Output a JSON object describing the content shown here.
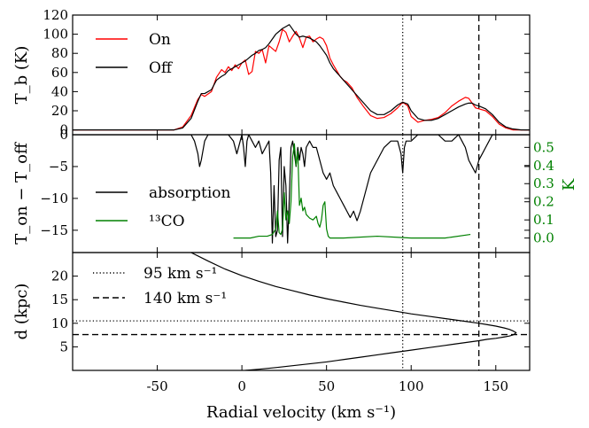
{
  "chart_data": {
    "type": "line",
    "x_axis": {
      "label": "Radial velocity (km s⁻¹)",
      "range": [
        -100,
        170
      ],
      "ticks": [
        -50,
        0,
        50,
        100,
        150
      ],
      "tick_labels": [
        "-50",
        "0",
        "50",
        "100",
        "150"
      ]
    },
    "marker_lines": [
      {
        "x": 95,
        "style": "dotted"
      },
      {
        "x": 140,
        "style": "dashed"
      }
    ],
    "panels": [
      {
        "id": "top",
        "ylabel": "T_b (K)",
        "ylim": [
          -5,
          120
        ],
        "yticks": [
          0,
          20,
          40,
          60,
          80,
          100,
          120
        ],
        "ytick_labels": [
          "0",
          "20",
          "40",
          "60",
          "80",
          "100",
          "120"
        ],
        "legend": [
          {
            "label": "On",
            "color": "#ff0000"
          },
          {
            "label": "Off",
            "color": "#000000"
          }
        ],
        "series": [
          {
            "name": "On",
            "color": "#ff0000",
            "x": [
              -100,
              -40,
              -35,
              -30,
              -26,
              -24,
              -22,
              -18,
              -15,
              -12,
              -10,
              -8,
              -6,
              -4,
              -2,
              0,
              2,
              4,
              6,
              8,
              10,
              12,
              14,
              16,
              18,
              20,
              22,
              24,
              26,
              28,
              30,
              32,
              34,
              36,
              38,
              40,
              42,
              44,
              46,
              48,
              50,
              52,
              54,
              56,
              58,
              60,
              62,
              65,
              68,
              72,
              76,
              80,
              84,
              88,
              92,
              95,
              98,
              100,
              104,
              108,
              112,
              116,
              120,
              124,
              128,
              132,
              134,
              136,
              138,
              140,
              144,
              148,
              152,
              156,
              160,
              165,
              170
            ],
            "y": [
              0,
              0,
              3,
              15,
              32,
              37,
              35,
              40,
              55,
              63,
              60,
              66,
              62,
              68,
              64,
              70,
              73,
              58,
              61,
              82,
              80,
              84,
              70,
              88,
              85,
              82,
              92,
              105,
              102,
              92,
              98,
              103,
              96,
              86,
              97,
              98,
              92,
              95,
              97,
              95,
              88,
              75,
              68,
              62,
              56,
              52,
              50,
              44,
              34,
              24,
              15,
              12,
              13,
              17,
              23,
              29,
              25,
              14,
              8,
              10,
              11,
              13,
              18,
              25,
              30,
              34,
              33,
              28,
              23,
              22,
              20,
              14,
              6,
              2,
              0,
              0,
              0
            ]
          },
          {
            "name": "Off",
            "color": "#000000",
            "x": [
              -100,
              -40,
              -35,
              -30,
              -26,
              -24,
              -22,
              -18,
              -15,
              -12,
              -10,
              -8,
              -6,
              -4,
              -2,
              0,
              2,
              4,
              6,
              8,
              10,
              12,
              14,
              16,
              18,
              20,
              22,
              24,
              26,
              28,
              30,
              32,
              34,
              36,
              38,
              40,
              42,
              44,
              46,
              48,
              50,
              52,
              54,
              56,
              58,
              60,
              62,
              65,
              68,
              72,
              76,
              80,
              84,
              88,
              92,
              95,
              98,
              100,
              104,
              108,
              112,
              116,
              120,
              124,
              128,
              132,
              134,
              136,
              138,
              140,
              144,
              148,
              152,
              156,
              160,
              165,
              170
            ],
            "y": [
              0,
              0,
              2,
              12,
              30,
              38,
              38,
              42,
              52,
              56,
              58,
              62,
              64,
              66,
              68,
              70,
              72,
              75,
              78,
              80,
              83,
              84,
              86,
              90,
              95,
              100,
              103,
              106,
              108,
              110,
              105,
              100,
              97,
              98,
              97,
              96,
              94,
              92,
              88,
              83,
              78,
              70,
              64,
              60,
              56,
              52,
              48,
              42,
              36,
              28,
              20,
              16,
              16,
              20,
              26,
              29,
              27,
              20,
              12,
              10,
              10,
              12,
              16,
              20,
              24,
              27,
              28,
              28,
              26,
              25,
              22,
              16,
              8,
              3,
              1,
              0,
              0
            ]
          }
        ]
      },
      {
        "id": "middle",
        "ylabel": "T_on − T_off",
        "ylim": [
          -18.5,
          0
        ],
        "yticks": [
          0,
          -5,
          -10,
          -15
        ],
        "ytick_labels": [
          "0",
          "−5",
          "−10",
          "−15"
        ],
        "right_axis": {
          "label": "K",
          "color": "#008000",
          "ylim": [
            -0.08,
            0.57
          ],
          "yticks": [
            0.0,
            0.1,
            0.2,
            0.3,
            0.4,
            0.5
          ],
          "ytick_labels": [
            "0.0",
            "0.1",
            "0.2",
            "0.3",
            "0.4",
            "0.5"
          ]
        },
        "legend": [
          {
            "label": "absorption",
            "color": "#000000"
          },
          {
            "label": "¹³CO",
            "color": "#008000"
          }
        ],
        "series": [
          {
            "name": "absorption",
            "color": "#000000",
            "x": [
              -100,
              -35,
              -30,
              -28,
              -26,
              -25,
              -24,
              -22,
              -20,
              -15,
              -12,
              -8,
              -5,
              -3,
              -1,
              0,
              1,
              2,
              3,
              4,
              6,
              8,
              10,
              12,
              14,
              16,
              17,
              18,
              19,
              20,
              21,
              22,
              23,
              24,
              25,
              26,
              27,
              28,
              29,
              30,
              31,
              32,
              33,
              34,
              35,
              36,
              37,
              38,
              40,
              42,
              44,
              46,
              48,
              50,
              52,
              54,
              56,
              58,
              60,
              62,
              64,
              66,
              68,
              70,
              72,
              74,
              76,
              80,
              84,
              88,
              92,
              94,
              95,
              96,
              97,
              98,
              100,
              104,
              108,
              112,
              116,
              120,
              124,
              128,
              130,
              132,
              134,
              136,
              138,
              140,
              142,
              144,
              146,
              148,
              150,
              155,
              170
            ],
            "y": [
              0,
              0,
              0,
              -1,
              -3,
              -5,
              -4,
              -1,
              0,
              0,
              0,
              0,
              -1,
              -3,
              -1,
              0,
              -2,
              -5,
              -1,
              0,
              -1,
              -2,
              -1,
              -3,
              -2,
              -1,
              -6,
              -17,
              -8,
              -16,
              -15,
              -4,
              -2,
              -16,
              -5,
              -8,
              -17,
              -10,
              -2,
              -1,
              -3,
              -5,
              -2,
              -4,
              -2,
              -3,
              -5,
              -2,
              -1,
              -2,
              -2,
              -4,
              -6,
              -7,
              -6,
              -8,
              -9,
              -10,
              -11,
              -12,
              -13,
              -12,
              -13.5,
              -12,
              -10,
              -8,
              -6,
              -4,
              -2,
              -1,
              -1,
              -3,
              -6,
              -2,
              -1,
              -1,
              -1,
              0,
              0,
              0,
              0,
              -1,
              -1,
              0,
              -1,
              -2,
              -4,
              -5,
              -6,
              -4,
              -3,
              -2,
              -1,
              0,
              0,
              0,
              0
            ]
          },
          {
            "name": "¹³CO",
            "color": "#008000",
            "x": [
              -5,
              5,
              10,
              15,
              18,
              20,
              21,
              22,
              23,
              24,
              25,
              26,
              27,
              28,
              29,
              30,
              31,
              32,
              33,
              34,
              35,
              36,
              37,
              38,
              40,
              42,
              44,
              45,
              46,
              47,
              48,
              49,
              50,
              51,
              52,
              60,
              80,
              100,
              120,
              135
            ],
            "y": [
              0.0,
              0.0,
              0.01,
              0.01,
              0.02,
              0.05,
              0.15,
              0.03,
              0.02,
              0.05,
              0.25,
              0.1,
              0.15,
              0.08,
              0.2,
              0.45,
              0.52,
              0.4,
              0.48,
              0.18,
              0.22,
              0.15,
              0.17,
              0.13,
              0.11,
              0.1,
              0.12,
              0.08,
              0.06,
              0.1,
              0.18,
              0.2,
              0.05,
              0.01,
              0.0,
              0.0,
              0.01,
              0.0,
              0.0,
              0.02
            ]
          }
        ]
      },
      {
        "id": "bottom",
        "ylabel": "d (kpc)",
        "ylim": [
          0,
          25
        ],
        "yticks": [
          5,
          10,
          15,
          20
        ],
        "ytick_labels": [
          "5",
          "10",
          "15",
          "20"
        ],
        "hlines": [
          {
            "y": 10.5,
            "style": "dotted"
          },
          {
            "y": 7.6,
            "style": "dashed"
          }
        ],
        "legend": [
          {
            "label": "95 km s⁻¹",
            "style": "dotted"
          },
          {
            "label": "140 km s⁻¹",
            "style": "dashed"
          }
        ],
        "series": [
          {
            "name": "distance",
            "color": "#000000",
            "x": [
              -30,
              -20,
              -10,
              0,
              10,
              20,
              30,
              40,
              50,
              60,
              70,
              80,
              90,
              100,
              110,
              120,
              130,
              140,
              145,
              150,
              155,
              158,
              160,
              161,
              162,
              161,
              160,
              158,
              155,
              150,
              145,
              140,
              130,
              120,
              110,
              100,
              90,
              80,
              70,
              60,
              50,
              40,
              30,
              20,
              10,
              2
            ],
            "y": [
              25,
              23.2,
              21.5,
              20.1,
              18.9,
              17.8,
              16.9,
              16.0,
              15.2,
              14.5,
              13.8,
              13.2,
              12.6,
              12.0,
              11.5,
              11.0,
              10.5,
              10.0,
              9.7,
              9.4,
              9.0,
              8.7,
              8.4,
              8.2,
              8.0,
              7.7,
              7.5,
              7.3,
              7.1,
              6.8,
              6.6,
              6.3,
              5.8,
              5.3,
              4.8,
              4.3,
              3.8,
              3.3,
              2.8,
              2.3,
              1.8,
              1.4,
              1.0,
              0.6,
              0.25,
              0
            ]
          }
        ]
      }
    ]
  }
}
